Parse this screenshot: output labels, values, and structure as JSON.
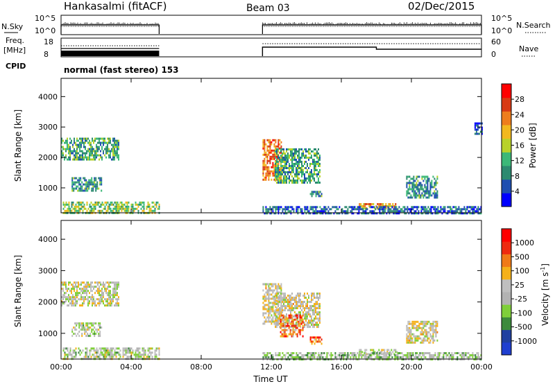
{
  "header": {
    "station": "Hankasalmi (fitACF)",
    "beam": "Beam 03",
    "date": "02/Dec/2015"
  },
  "labels": {
    "nsky": "N.Sky",
    "nsearch": "N.Search",
    "freq_line1": "Freq.",
    "freq_line2": "[MHz]",
    "nave": "Nave",
    "cpid": "CPID",
    "cpid_value": "normal (fast stereo) 153",
    "nsky_ticks": [
      "10^5",
      "10^0"
    ],
    "nsearch_ticks": [
      "10^5",
      "10^0"
    ],
    "freq_ticks": [
      "18",
      "8"
    ],
    "nave_ticks": [
      "60",
      "0"
    ]
  },
  "colors": {
    "power_scale": [
      "#0000ff",
      "#1f4fb0",
      "#2d8a70",
      "#3cb878",
      "#b8d22a",
      "#f2b81e",
      "#ee7d1c",
      "#d83a14",
      "#ff0000"
    ],
    "velocity_scale": [
      "#ff0000",
      "#ee2a10",
      "#f07a18",
      "#f5b11a",
      "#bfbfbf",
      "#b3b3b3",
      "#7fcf3a",
      "#3c8a3c",
      "#2040a0",
      "#1f3fd0"
    ],
    "ground_scatter": "#bebebe"
  },
  "chart_data": [
    {
      "type": "heatmap",
      "name": "power",
      "xlabel": "",
      "ylabel": "Slant Range [km]",
      "xlim": [
        0,
        24
      ],
      "ylim": [
        180,
        4600
      ],
      "x_ticks": [
        "00:00",
        "04:00",
        "08:00",
        "12:00",
        "16:00",
        "20:00",
        "00:00"
      ],
      "y_ticks": [
        1000,
        2000,
        3000,
        4000
      ],
      "colorbar": {
        "label": "Power [dB]",
        "range": [
          0,
          32
        ],
        "ticks": [
          4,
          8,
          12,
          16,
          20,
          24,
          28
        ]
      },
      "regions": [
        {
          "t0": 0.0,
          "t1": 3.3,
          "r0": 1900,
          "r1": 2650,
          "level": 0.35
        },
        {
          "t0": 0.1,
          "t1": 5.6,
          "r0": 180,
          "r1": 550,
          "level": 0.45
        },
        {
          "t0": 0.6,
          "t1": 2.3,
          "r0": 900,
          "r1": 1350,
          "level": 0.3
        },
        {
          "t0": 11.5,
          "t1": 12.6,
          "r0": 1300,
          "r1": 2600,
          "level": 0.75
        },
        {
          "t0": 12.2,
          "t1": 14.8,
          "r0": 1200,
          "r1": 2300,
          "level": 0.35
        },
        {
          "t0": 14.2,
          "t1": 14.9,
          "r0": 700,
          "r1": 900,
          "level": 0.3
        },
        {
          "t0": 17.0,
          "t1": 19.2,
          "r0": 350,
          "r1": 500,
          "level": 0.65
        },
        {
          "t0": 19.7,
          "t1": 21.5,
          "r0": 700,
          "r1": 1400,
          "level": 0.3
        },
        {
          "t0": 11.5,
          "t1": 24.0,
          "r0": 180,
          "r1": 400,
          "level": 0.2
        },
        {
          "t0": 23.6,
          "t1": 24.0,
          "r0": 2800,
          "r1": 3150,
          "level": 0.15
        }
      ]
    },
    {
      "type": "heatmap",
      "name": "velocity",
      "xlabel": "Time UT",
      "ylabel": "Slant Range [km]",
      "xlim": [
        0,
        24
      ],
      "ylim": [
        180,
        4600
      ],
      "x_ticks": [
        "00:00",
        "04:00",
        "08:00",
        "12:00",
        "16:00",
        "20:00",
        "00:00"
      ],
      "y_ticks": [
        1000,
        2000,
        3000,
        4000
      ],
      "colorbar": {
        "label": "Velocity [m s^-1]",
        "ticks": [
          "1000",
          "500",
          "100",
          "25",
          "-25",
          "-100",
          "-500",
          "-1000"
        ]
      },
      "regions": [
        {
          "t0": 0.0,
          "t1": 3.3,
          "r0": 1900,
          "r1": 2650,
          "level": 0.5
        },
        {
          "t0": 0.1,
          "t1": 5.6,
          "r0": 180,
          "r1": 550,
          "level": 0.55
        },
        {
          "t0": 0.6,
          "t1": 2.3,
          "r0": 900,
          "r1": 1350,
          "level": 0.55
        },
        {
          "t0": 11.5,
          "t1": 12.6,
          "r0": 1300,
          "r1": 2600,
          "level": 0.47
        },
        {
          "t0": 12.2,
          "t1": 14.8,
          "r0": 1200,
          "r1": 2300,
          "level": 0.47
        },
        {
          "t0": 12.5,
          "t1": 13.8,
          "r0": 900,
          "r1": 1600,
          "level": 0.25
        },
        {
          "t0": 14.2,
          "t1": 14.9,
          "r0": 700,
          "r1": 900,
          "level": 0.25
        },
        {
          "t0": 17.0,
          "t1": 19.2,
          "r0": 350,
          "r1": 500,
          "level": 0.47
        },
        {
          "t0": 19.7,
          "t1": 21.5,
          "r0": 700,
          "r1": 1400,
          "level": 0.47
        },
        {
          "t0": 11.5,
          "t1": 24.0,
          "r0": 180,
          "r1": 400,
          "level": 0.6
        }
      ]
    }
  ],
  "status_panels": {
    "nsky_active": [
      [
        0.0,
        5.6
      ],
      [
        11.5,
        24.0
      ]
    ],
    "freq_active": [
      [
        0.0,
        5.6
      ],
      [
        11.5,
        24.0
      ]
    ],
    "nave_step_time": 18.0
  }
}
